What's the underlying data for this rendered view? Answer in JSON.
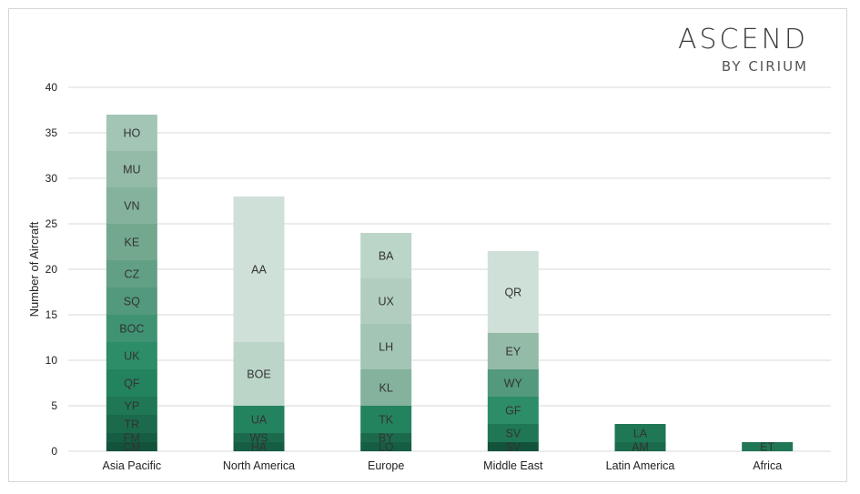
{
  "brand": {
    "name": "ASCEND",
    "sub": "BY CIRIUM"
  },
  "chart_data": {
    "type": "bar",
    "stacked": true,
    "ylabel": "Number of Aircraft",
    "xlabel": "",
    "ylim": [
      0,
      40
    ],
    "yticks": [
      0,
      5,
      10,
      15,
      20,
      25,
      30,
      35,
      40
    ],
    "grid": true,
    "categories": [
      {
        "name": "Asia Pacific",
        "segments": [
          {
            "label": "CM",
            "value": 1,
            "color": "#13523b"
          },
          {
            "label": "FM",
            "value": 1,
            "color": "#165e43"
          },
          {
            "label": "TR",
            "value": 2,
            "color": "#1b6a4c"
          },
          {
            "label": "YP",
            "value": 2,
            "color": "#1f7755"
          },
          {
            "label": "QF",
            "value": 3,
            "color": "#24835f"
          },
          {
            "label": "UK",
            "value": 3,
            "color": "#2c8d68"
          },
          {
            "label": "BOC",
            "value": 3,
            "color": "#3f9373"
          },
          {
            "label": "SQ",
            "value": 3,
            "color": "#53997d"
          },
          {
            "label": "CZ",
            "value": 3,
            "color": "#62a085"
          },
          {
            "label": "KE",
            "value": 4,
            "color": "#73a88f"
          },
          {
            "label": "VN",
            "value": 4,
            "color": "#84b29c"
          },
          {
            "label": "MU",
            "value": 4,
            "color": "#93bba8"
          },
          {
            "label": "HO",
            "value": 4,
            "color": "#a3c5b5"
          }
        ]
      },
      {
        "name": "North America",
        "segments": [
          {
            "label": "HA",
            "value": 1,
            "color": "#165e43"
          },
          {
            "label": "WS",
            "value": 1,
            "color": "#1b6a4c"
          },
          {
            "label": "UA",
            "value": 3,
            "color": "#24835f"
          },
          {
            "label": "BOE",
            "value": 7,
            "color": "#bcd5c9"
          },
          {
            "label": "AA",
            "value": 16,
            "color": "#cfe0d8"
          }
        ]
      },
      {
        "name": "Europe",
        "segments": [
          {
            "label": "LO",
            "value": 1,
            "color": "#165e43"
          },
          {
            "label": "BY",
            "value": 1,
            "color": "#1b6a4c"
          },
          {
            "label": "TK",
            "value": 3,
            "color": "#24835f"
          },
          {
            "label": "KL",
            "value": 4,
            "color": "#84b29c"
          },
          {
            "label": "LH",
            "value": 5,
            "color": "#a3c5b5"
          },
          {
            "label": "UX",
            "value": 5,
            "color": "#b1cdbf"
          },
          {
            "label": "BA",
            "value": 5,
            "color": "#bcd5c9"
          }
        ]
      },
      {
        "name": "Middle East",
        "segments": [
          {
            "label": "SV",
            "value": 1,
            "color": "#13523b"
          },
          {
            "label": "SV",
            "value": 2,
            "color": "#1f7755"
          },
          {
            "label": "GF",
            "value": 3,
            "color": "#2c8d68"
          },
          {
            "label": "WY",
            "value": 3,
            "color": "#53997d"
          },
          {
            "label": "EY",
            "value": 4,
            "color": "#93bba8"
          },
          {
            "label": "QR",
            "value": 9,
            "color": "#cfe0d8"
          }
        ]
      },
      {
        "name": "Latin America",
        "segments": [
          {
            "label": "AM",
            "value": 1,
            "color": "#1b6a4c"
          },
          {
            "label": "LA",
            "value": 2,
            "color": "#1f7755"
          }
        ]
      },
      {
        "name": "Africa",
        "segments": [
          {
            "label": "ET",
            "value": 1,
            "color": "#1f7755"
          }
        ]
      }
    ]
  }
}
